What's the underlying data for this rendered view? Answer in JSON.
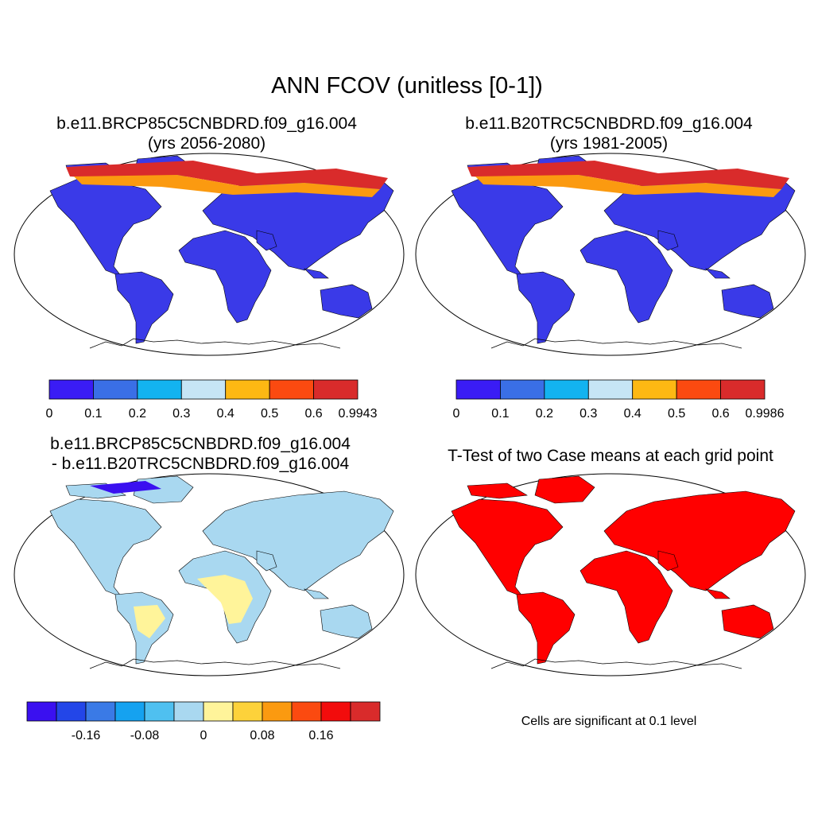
{
  "main_title": "ANN FCOV (unitless [0-1])",
  "panels": [
    {
      "title_line1": "b.e11.BRCP85C5CNBDRD.f09_g16.004",
      "title_line2": "(yrs 2056-2080)"
    },
    {
      "title_line1": "b.e11.B20TRC5CNBDRD.f09_g16.004",
      "title_line2": "(yrs 1981-2005)"
    },
    {
      "title_line1": "b.e11.BRCP85C5CNBDRD.f09_g16.004",
      "title_line2": "- b.e11.B20TRC5CNBDRD.f09_g16.004"
    },
    {
      "title_line1": "T-Test of two Case means at each grid point"
    }
  ],
  "colorbars": {
    "case1": {
      "colors": [
        "#3a1cf5",
        "#3a6fe6",
        "#13b3f0",
        "#c6e5f5",
        "#fdb813",
        "#fb4a10",
        "#d92b2b"
      ],
      "labels": [
        "0",
        "0.1",
        "0.2",
        "0.3",
        "0.4",
        "0.5",
        "0.6",
        "0.9943"
      ]
    },
    "case2": {
      "colors": [
        "#3a1cf5",
        "#3a6fe6",
        "#13b3f0",
        "#c6e5f5",
        "#fdb813",
        "#fb4a10",
        "#d92b2b"
      ],
      "labels": [
        "0",
        "0.1",
        "0.2",
        "0.3",
        "0.4",
        "0.5",
        "0.6",
        "0.9986"
      ]
    },
    "diff": {
      "colors": [
        "#3a10f0",
        "#2346e8",
        "#3a7ae6",
        "#15a2f0",
        "#4fc0f0",
        "#a9d8f0",
        "#fff49a",
        "#fdd23a",
        "#fb9a10",
        "#fb4a10",
        "#f20c0c",
        "#d92b2b"
      ],
      "labels": [
        "-0.16",
        "-0.08",
        "0",
        "0.08",
        "0.16"
      ]
    }
  },
  "significance_note": "Cells are significant at 0.1 level",
  "colors": {
    "land_case": "#3a3ae8",
    "land_diff": "#a9d8f0",
    "land_ttest": "#ff0000"
  }
}
